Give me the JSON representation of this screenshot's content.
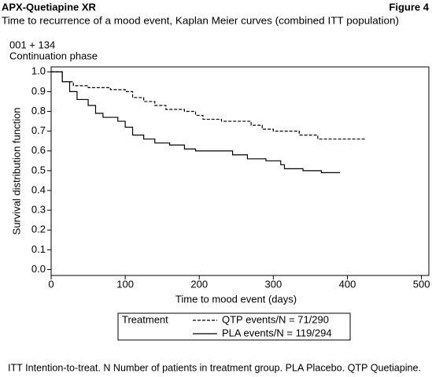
{
  "chart_data": {
    "type": "step",
    "header": "APX-Quetiapine XR",
    "figure_label": "Figure 4",
    "title": "Time to recurrence of a mood event, Kaplan Meier curves (combined ITT population)",
    "annotations": [
      "001 + 134",
      "Continuation phase"
    ],
    "xlabel": "Time to mood event (days)",
    "ylabel": "Survival distribution function",
    "xlim": [
      0,
      510
    ],
    "xticks": [
      0,
      100,
      200,
      300,
      400,
      500
    ],
    "ylim": [
      -0.03,
      1.025
    ],
    "yticks": [
      {
        "value": 1,
        "label": "1.0"
      },
      0.9,
      0.8,
      0.7,
      0.6,
      0.5,
      0.4,
      0.3,
      0.2,
      0.1,
      {
        "value": 0,
        "label": "0.0"
      }
    ],
    "legend_title": "Treatment",
    "series": [
      {
        "name": "QTP events/N = 71/290",
        "color": "#000000",
        "dashed": true,
        "x": [
          0,
          15,
          30,
          50,
          80,
          100,
          110,
          125,
          140,
          155,
          180,
          195,
          205,
          230,
          270,
          285,
          300,
          335,
          360,
          425
        ],
        "values": [
          1.0,
          0.95,
          0.93,
          0.92,
          0.91,
          0.9,
          0.87,
          0.85,
          0.83,
          0.81,
          0.8,
          0.78,
          0.76,
          0.75,
          0.73,
          0.71,
          0.7,
          0.68,
          0.66,
          0.66
        ]
      },
      {
        "name": "PLA events/N = 119/294",
        "color": "#000000",
        "dashed": false,
        "x": [
          0,
          15,
          25,
          35,
          50,
          60,
          70,
          90,
          100,
          110,
          125,
          140,
          160,
          180,
          195,
          245,
          265,
          290,
          310,
          315,
          340,
          365,
          390
        ],
        "values": [
          1.0,
          0.95,
          0.9,
          0.86,
          0.83,
          0.79,
          0.77,
          0.75,
          0.72,
          0.68,
          0.66,
          0.64,
          0.63,
          0.61,
          0.6,
          0.58,
          0.56,
          0.55,
          0.53,
          0.51,
          0.5,
          0.49,
          0.49
        ]
      }
    ],
    "footnote": "ITT Intention-to-treat. N Number of patients in treatment group. PLA Placebo. QTP Quetiapine."
  }
}
